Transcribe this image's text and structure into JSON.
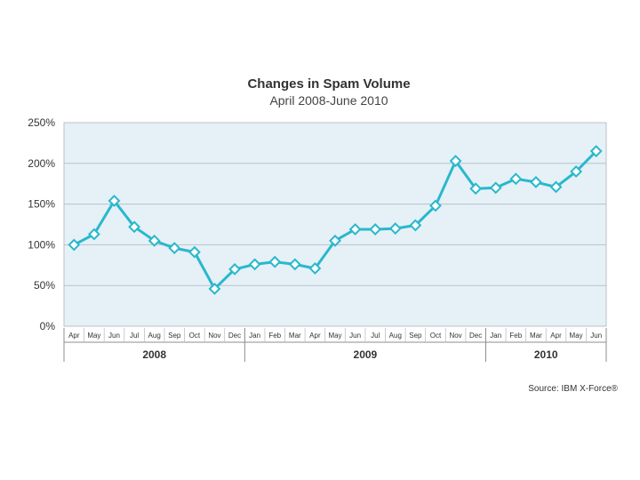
{
  "colors": {
    "line": "#29b8cc",
    "marker_fill": "#ffffff",
    "plot_bg": "#e6f0f7",
    "grid": "#b9c2c8",
    "axis": "#8c8c8c",
    "text": "#333333"
  },
  "chart_data": {
    "type": "line",
    "title": "Changes in Spam Volume",
    "subtitle": "April 2008-June 2010",
    "source": "Source: IBM X-Force®",
    "categories": [
      "Apr",
      "May",
      "Jun",
      "Jul",
      "Aug",
      "Sep",
      "Oct",
      "Nov",
      "Dec",
      "Jan",
      "Feb",
      "Mar",
      "Apr",
      "May",
      "Jun",
      "Jul",
      "Aug",
      "Sep",
      "Oct",
      "Nov",
      "Dec",
      "Jan",
      "Feb",
      "Mar",
      "Apr",
      "May",
      "Jun"
    ],
    "years": [
      {
        "label": "2008",
        "start": 0,
        "end": 8
      },
      {
        "label": "2009",
        "start": 9,
        "end": 20
      },
      {
        "label": "2010",
        "start": 21,
        "end": 26
      }
    ],
    "series": [
      {
        "name": "Spam Volume",
        "values": [
          100,
          113,
          154,
          122,
          105,
          96,
          91,
          46,
          70,
          76,
          79,
          76,
          71,
          105,
          119,
          119,
          120,
          124,
          148,
          203,
          169,
          170,
          181,
          177,
          171,
          190,
          215
        ]
      }
    ],
    "ylim": [
      0,
      250
    ],
    "yticks": [
      0,
      50,
      100,
      150,
      200,
      250
    ],
    "ytick_labels": [
      "0%",
      "50%",
      "100%",
      "150%",
      "200%",
      "250%"
    ],
    "grid": true,
    "xlabel": "",
    "ylabel": ""
  }
}
